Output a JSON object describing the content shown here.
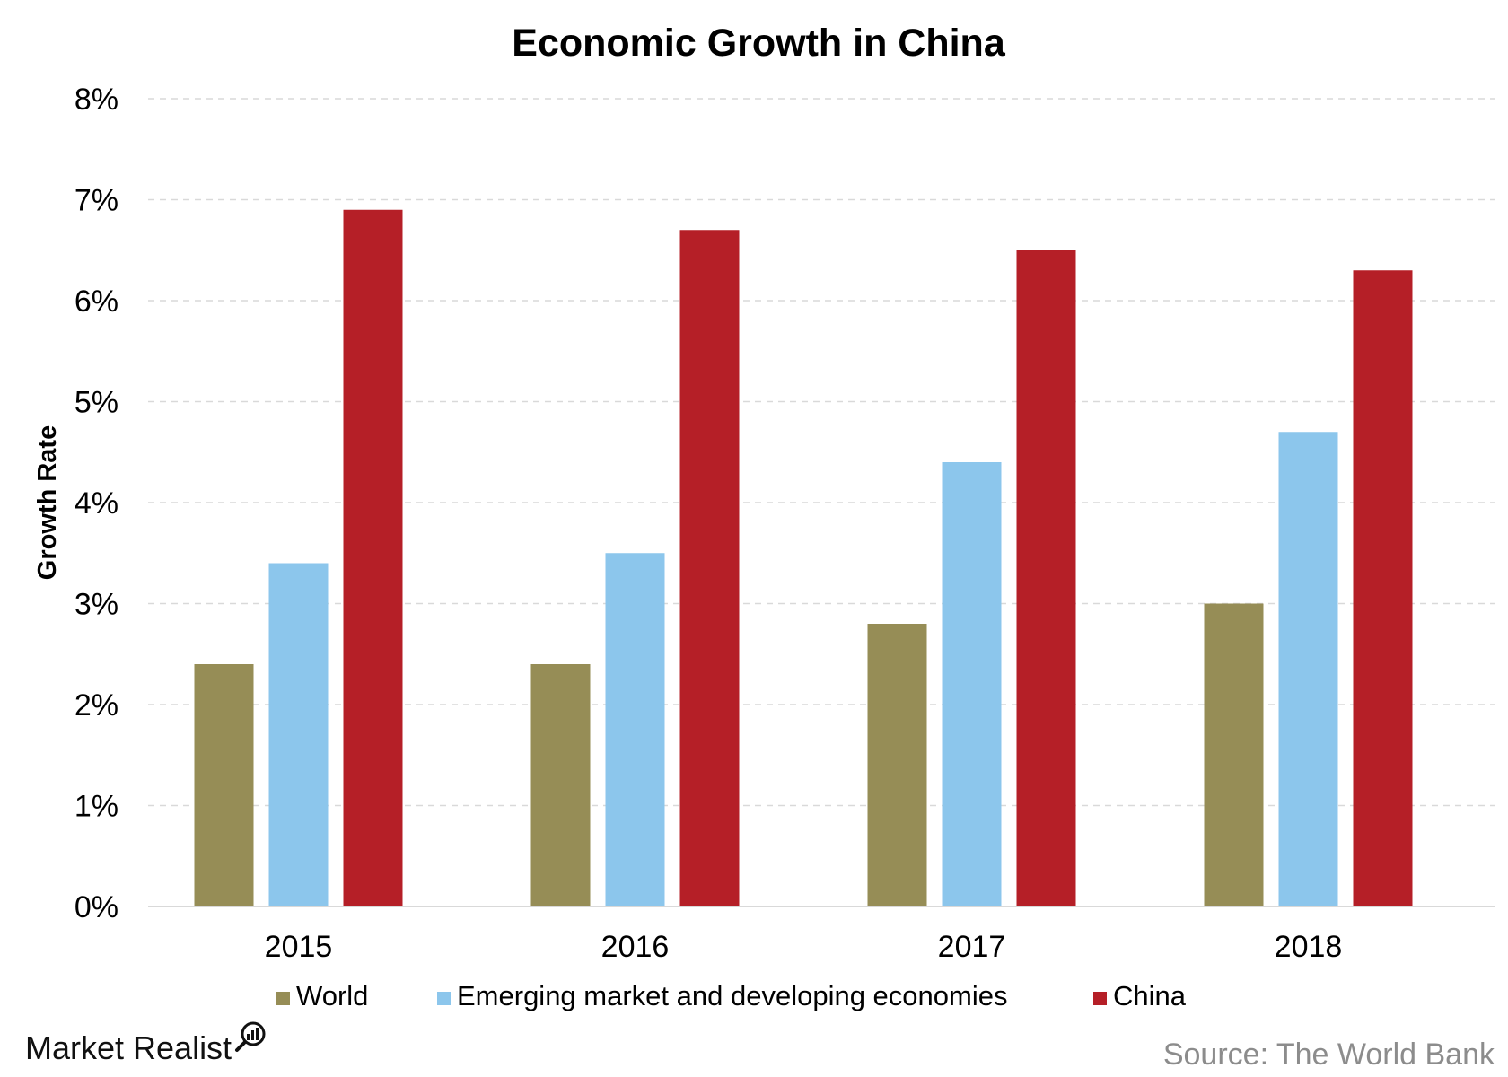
{
  "chart_data": {
    "type": "bar",
    "title": "Economic Growth in China",
    "xlabel": "",
    "ylabel": "Growth Rate",
    "categories": [
      "2015",
      "2016",
      "2017",
      "2018"
    ],
    "series": [
      {
        "name": "World",
        "values": [
          2.4,
          2.4,
          2.8,
          3.0
        ],
        "color": "#968d56"
      },
      {
        "name": "Emerging market and developing economies",
        "values": [
          3.4,
          3.5,
          4.4,
          4.7
        ],
        "color": "#8cc6ec"
      },
      {
        "name": "China",
        "values": [
          6.9,
          6.7,
          6.5,
          6.3
        ],
        "color": "#b51f27"
      }
    ],
    "ylim": [
      0,
      8
    ],
    "yticks": [
      {
        "value": 0,
        "label": "0%"
      },
      {
        "value": 1,
        "label": "1%"
      },
      {
        "value": 2,
        "label": "2%"
      },
      {
        "value": 3,
        "label": "3%"
      },
      {
        "value": 4,
        "label": "4%"
      },
      {
        "value": 5,
        "label": "5%"
      },
      {
        "value": 6,
        "label": "6%"
      },
      {
        "value": 7,
        "label": "7%"
      },
      {
        "value": 8,
        "label": "8%"
      }
    ],
    "grid": true,
    "legend_position": "bottom"
  },
  "branding": {
    "logo_text": "Market Realist",
    "source": "Source: The World Bank"
  },
  "colors": {
    "grid": "#d9d9d9",
    "axis": "#d9d9d9",
    "source_text": "#8c8c8c"
  }
}
